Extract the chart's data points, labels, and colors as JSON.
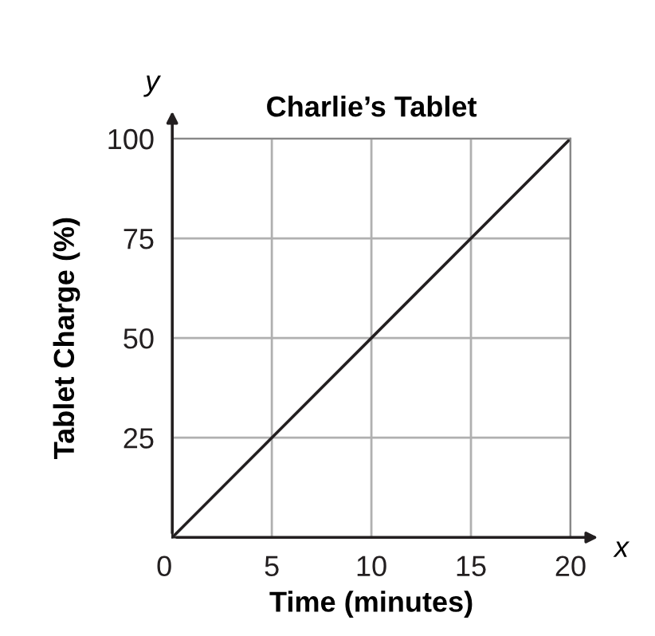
{
  "chart_data": {
    "type": "line",
    "title": "Charlie’s Tablet",
    "xlabel": "Time (minutes)",
    "ylabel": "Tablet Charge (%)",
    "x": [
      0,
      20
    ],
    "series": [
      {
        "color": "#231f20",
        "values": [
          0,
          100
        ]
      }
    ],
    "xlim": [
      0,
      20
    ],
    "ylim": [
      0,
      100
    ],
    "xticks": [
      {
        "value": 0,
        "label": "0"
      },
      5,
      10,
      15,
      20
    ],
    "yticks": [
      {
        "value": 0,
        "label": null
      },
      25,
      50,
      75,
      100
    ],
    "grid": true,
    "marker": "none",
    "line_style": "solid",
    "legend": false,
    "annotations": [
      "x",
      "y"
    ]
  }
}
